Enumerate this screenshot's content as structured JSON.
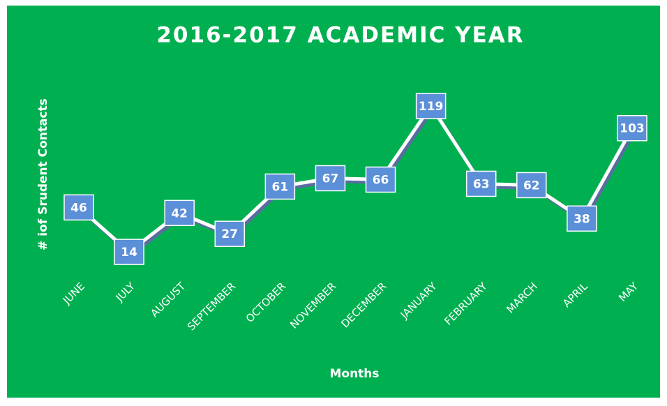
{
  "chart_data": {
    "type": "line",
    "title": "2016-2017 ACADEMIC YEAR",
    "x_label": "Months",
    "y_label": "# iof Srudent Contacts",
    "categories": [
      "JUNE",
      "JULY",
      "AUGUST",
      "SEPTEMBER",
      "OCTOBER",
      "NOVEMBER",
      "DECEMBER",
      "JANUARY",
      "FEBRUARY",
      "MARCH",
      "APRIL",
      "MAY"
    ],
    "series": [
      {
        "name": "Student Contacts",
        "color": "#ffffff",
        "values": [
          46,
          14,
          42,
          27,
          61,
          67,
          66,
          119,
          63,
          62,
          38,
          103
        ]
      }
    ],
    "ylim": [
      0,
      140
    ],
    "label_color": "#5b8fd8",
    "background": "#00b050"
  }
}
